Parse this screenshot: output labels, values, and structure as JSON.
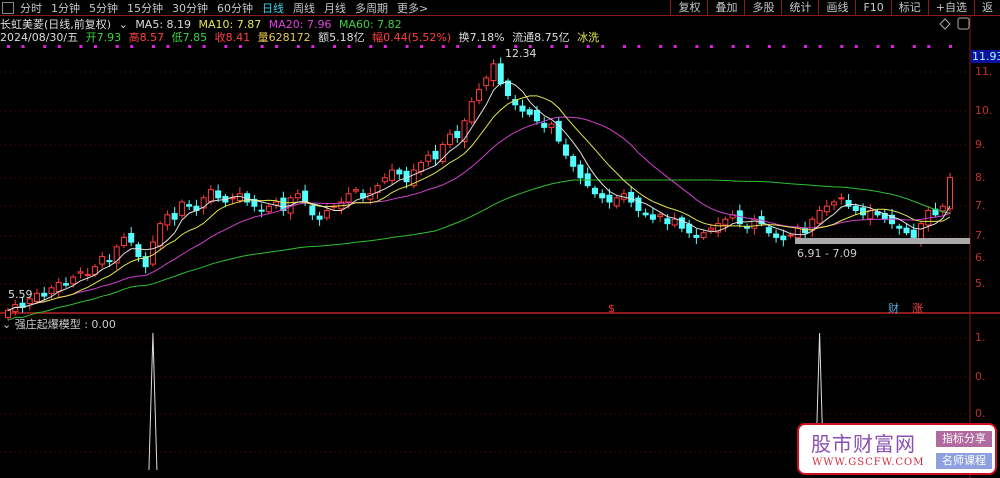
{
  "toolbar": {
    "periods": [
      "分时",
      "1分钟",
      "5分钟",
      "15分钟",
      "30分钟",
      "60分钟",
      "日线",
      "周线",
      "月线",
      "多周期",
      "更多>"
    ],
    "active_period": "日线",
    "tools": [
      "复权",
      "叠加",
      "多股",
      "统计",
      "画线",
      "F10",
      "标记",
      "+自选",
      "返"
    ]
  },
  "stock": {
    "title": "长虹美菱(日线,前复权)",
    "ma5": "MA5: 8.19",
    "ma10": "MA10: 7.87",
    "ma20": "MA20: 7.96",
    "ma60": "MA60: 7.82",
    "date": "2024/08/30/五",
    "open": "开7.93",
    "high": "高8.57",
    "low": "低7.85",
    "close": "收8.41",
    "volume": "量628172",
    "amount": "额5.18亿",
    "change": "幅0.44(5.52%)",
    "turnover": "换7.18%",
    "float": "流通8.75亿",
    "tag": "冰洗"
  },
  "axis": {
    "price_labels": [
      "11.",
      "10.",
      "9.",
      "8.",
      "7.",
      "7.",
      "6.",
      "5."
    ],
    "current_price": "11.93",
    "indicator_labels": [
      "1.",
      "0.",
      "0.",
      "0"
    ]
  },
  "annotations": {
    "peak": "12.34",
    "start_low": "5.59",
    "range": "6.91 - 7.09",
    "event_s": "$",
    "event_cai": "财",
    "event_zhang": "涨"
  },
  "indicator": {
    "label": "强庄起爆模型 : 0.00",
    "signal_indices": [
      20,
      112
    ]
  },
  "colors": {
    "up": "#ff3c3c",
    "down": "#54ffff",
    "ma5": "#e0e0e0",
    "ma10": "#e6e64c",
    "ma20": "#d040d0",
    "ma60": "#30c030"
  },
  "chart_data": {
    "type": "candlestick",
    "closes": [
      5.6,
      5.7,
      5.65,
      5.8,
      5.9,
      5.85,
      6.0,
      6.1,
      6.05,
      6.2,
      6.3,
      6.25,
      6.4,
      6.6,
      6.5,
      6.8,
      7.0,
      6.9,
      6.6,
      6.4,
      6.9,
      7.3,
      7.5,
      7.4,
      7.8,
      7.7,
      7.6,
      7.9,
      8.1,
      7.9,
      7.8,
      7.9,
      8.0,
      7.8,
      7.7,
      7.6,
      7.7,
      7.8,
      7.6,
      7.9,
      8.0,
      7.8,
      7.5,
      7.4,
      7.6,
      7.7,
      7.8,
      8.0,
      8.1,
      7.9,
      8.0,
      8.2,
      8.4,
      8.6,
      8.5,
      8.3,
      8.6,
      8.8,
      9.0,
      8.9,
      9.3,
      9.6,
      9.5,
      10.0,
      10.6,
      11.0,
      11.4,
      11.9,
      11.2,
      10.8,
      10.5,
      10.3,
      10.2,
      10.0,
      9.8,
      9.9,
      9.4,
      9.0,
      8.7,
      8.4,
      8.2,
      8.0,
      7.9,
      7.8,
      7.9,
      8.0,
      7.8,
      7.6,
      7.5,
      7.4,
      7.5,
      7.3,
      7.4,
      7.2,
      7.1,
      7.0,
      7.1,
      7.2,
      7.3,
      7.4,
      7.5,
      7.3,
      7.2,
      7.4,
      7.3,
      7.1,
      7.0,
      6.95,
      7.05,
      7.2,
      7.1,
      7.4,
      7.6,
      7.7,
      7.8,
      7.9,
      7.7,
      7.6,
      7.5,
      7.6,
      7.5,
      7.4,
      7.3,
      7.2,
      7.1,
      7.0,
      7.3,
      7.6,
      7.5,
      7.7,
      8.41
    ]
  }
}
